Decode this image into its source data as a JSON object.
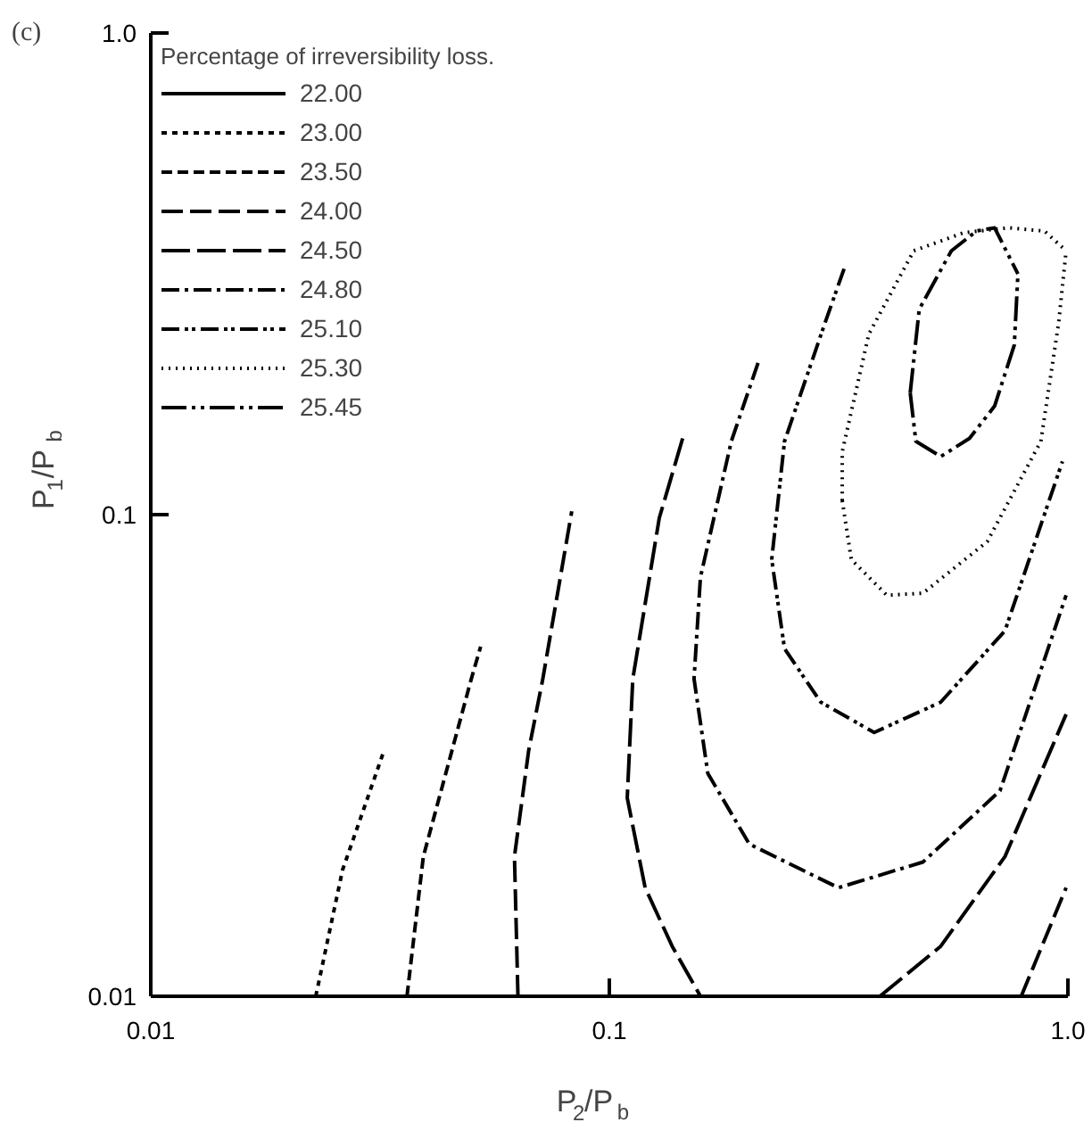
{
  "chart_data": {
    "type": "line",
    "title": "(c)",
    "xlabel": "P$_{2}$/P$_{b}$",
    "ylabel": "P$_{1}$/P$_{b}$",
    "legend_title": "Percentage of irreversibility loss.",
    "log": "xy",
    "grid": false,
    "legend": "top left",
    "xlim": [
      0.01,
      1.0
    ],
    "ylim": [
      0.01,
      1.0
    ],
    "xticks": [
      {
        "value": 0.01,
        "label": "0.01"
      },
      {
        "value": 0.1,
        "label": "0.1"
      },
      {
        "value": 1.0,
        "label": "1.0"
      }
    ],
    "yticks": [
      {
        "value": 0.01,
        "label": "0.01"
      },
      {
        "value": 0.1,
        "label": "0.1"
      },
      {
        "value": 1.0,
        "label": "1.0"
      }
    ],
    "series": [
      {
        "name": "22.00",
        "color": "#000000",
        "line_style": "solid",
        "x": [
          null
        ],
        "values": [
          null
        ]
      },
      {
        "name": "23.00",
        "color": "#000000",
        "line_style": "finedashed",
        "x": [
          0.0229,
          0.0262,
          0.0322
        ],
        "values": [
          0.01,
          0.0183,
          0.0322
        ]
      },
      {
        "name": "23.50",
        "color": "#000000",
        "line_style": "dashed",
        "x": [
          0.0362,
          0.0393,
          0.05,
          0.0524
        ],
        "values": [
          0.01,
          0.0195,
          0.0456,
          0.0532
        ]
      },
      {
        "name": "24.00",
        "color": "#000000",
        "line_style": "longdashed",
        "x": [
          0.0632,
          0.0621,
          0.0667,
          0.0716,
          0.0828,
          null,
          0.791,
          0.991
        ],
        "values": [
          0.01,
          0.0195,
          0.0324,
          0.0456,
          0.1016,
          null,
          0.01,
          0.0168
        ]
      },
      {
        "name": "24.50",
        "color": "#000000",
        "line_style": "longerdashed",
        "x": [
          0.1445,
          0.1285,
          0.1125,
          0.1094,
          0.1197,
          0.1371,
          0.158,
          null,
          0.389,
          0.528,
          0.729,
          0.991
        ],
        "values": [
          0.144,
          0.0984,
          0.0456,
          0.0258,
          0.0168,
          0.0127,
          0.01,
          null,
          0.01,
          0.0127,
          0.0195,
          0.0385
        ]
      },
      {
        "name": "24.80",
        "color": "#000000",
        "line_style": "dashdot",
        "x": [
          0.211,
          0.1845,
          0.158,
          0.153,
          0.164,
          0.202,
          0.316,
          0.483,
          0.711,
          0.991
        ],
        "values": [
          0.2065,
          0.142,
          0.0741,
          0.0456,
          0.029,
          0.0207,
          0.0168,
          0.019,
          0.0267,
          0.068
        ]
      },
      {
        "name": "25.10",
        "color": "#000000",
        "line_style": "dashdotdot",
        "x": [
          0.325,
          0.294,
          0.241,
          0.226,
          0.241,
          0.289,
          0.378,
          0.528,
          0.729,
          0.973
        ],
        "values": [
          0.324,
          0.247,
          0.142,
          0.0807,
          0.0527,
          0.0408,
          0.0353,
          0.0408,
          0.0574,
          0.129
        ]
      },
      {
        "name": "25.30",
        "color": "#000000",
        "line_style": "dotted",
        "x": [
          0.322,
          0.322,
          0.368,
          0.461,
          0.593,
          0.743,
          0.889,
          0.991,
          null,
          0.322,
          0.337,
          0.403,
          0.483,
          0.667,
          0.873,
          0.955,
          0.991
        ],
        "values": [
          0.107,
          0.135,
          0.237,
          0.353,
          0.385,
          0.394,
          0.388,
          0.353,
          null,
          0.107,
          0.0807,
          0.068,
          0.0687,
          0.0879,
          0.142,
          0.251,
          0.353
        ]
      },
      {
        "name": "25.45",
        "color": "#000000",
        "line_style": "dashdotdotlong",
        "x": [
          0.453,
          0.474,
          0.557,
          0.632,
          0.692,
          0.778,
          null,
          0.453,
          0.466,
          0.528,
          0.61,
          0.692,
          0.764,
          0.778
        ],
        "values": [
          0.179,
          0.267,
          0.353,
          0.388,
          0.394,
          0.316,
          null,
          0.179,
          0.142,
          0.132,
          0.144,
          0.168,
          0.225,
          0.316
        ]
      }
    ]
  }
}
